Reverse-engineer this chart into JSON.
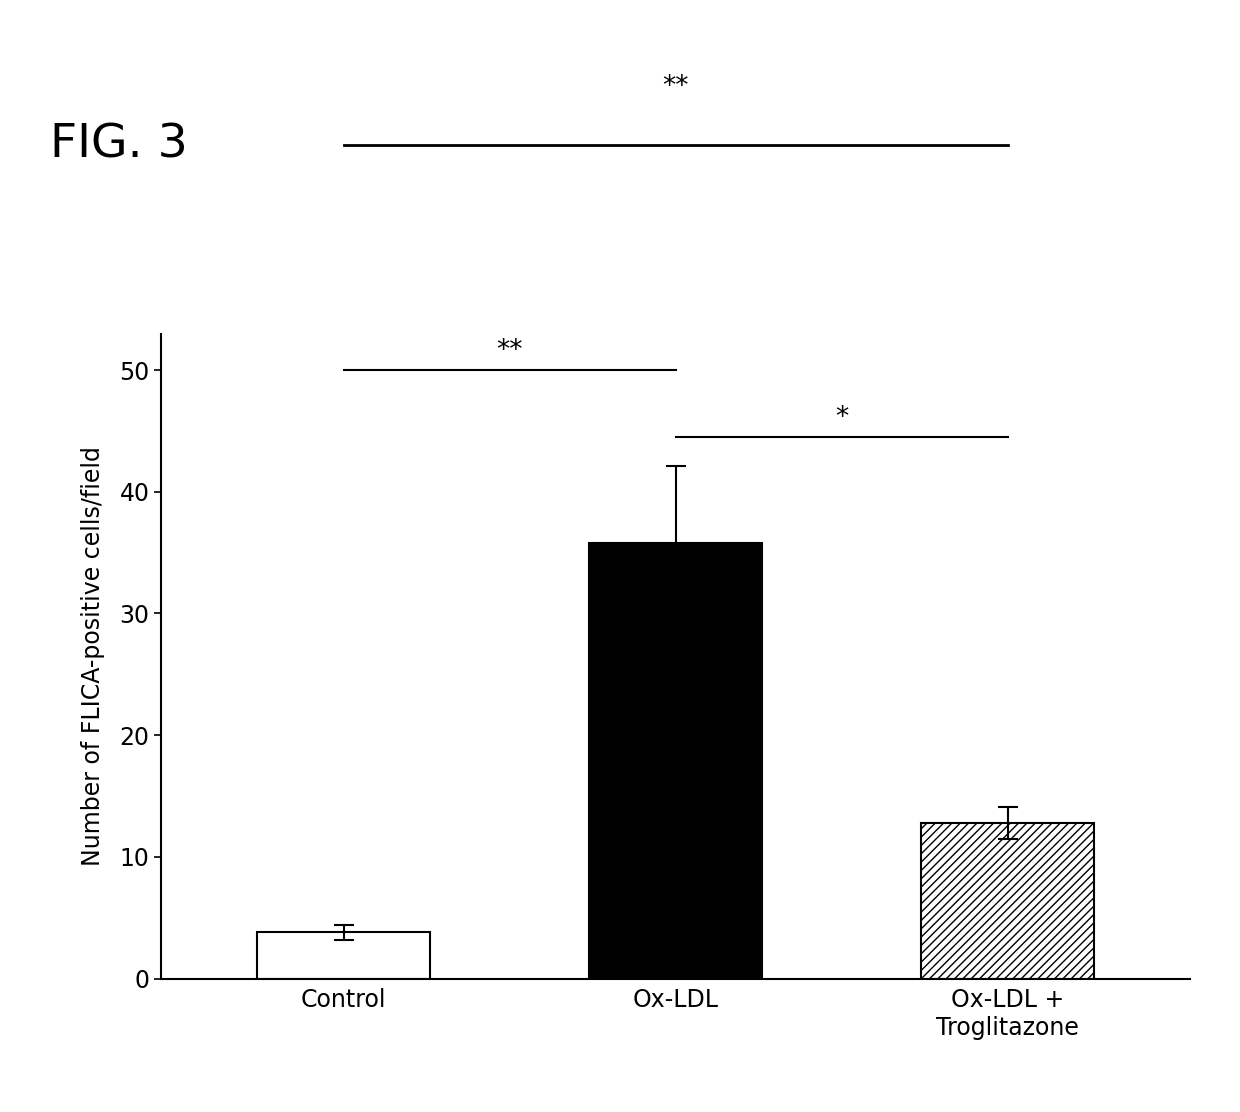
{
  "categories": [
    "Control",
    "Ox-LDL",
    "Ox-LDL +\nTroglitazone"
  ],
  "values": [
    3.8,
    35.8,
    12.8
  ],
  "errors": [
    0.6,
    6.3,
    1.3
  ],
  "bar_colors": [
    "white",
    "black",
    "white"
  ],
  "bar_hatches": [
    null,
    null,
    "////"
  ],
  "bar_edgecolors": [
    "black",
    "black",
    "black"
  ],
  "ylabel": "Number of FLICA-positive cells/field",
  "ylim": [
    0,
    53
  ],
  "yticks": [
    0,
    10,
    20,
    30,
    40,
    50
  ],
  "fig_label": "FIG. 3",
  "fig_label_fontsize": 34,
  "axis_fontsize": 17,
  "tick_fontsize": 17,
  "background_color": "white",
  "bar_width": 0.52
}
